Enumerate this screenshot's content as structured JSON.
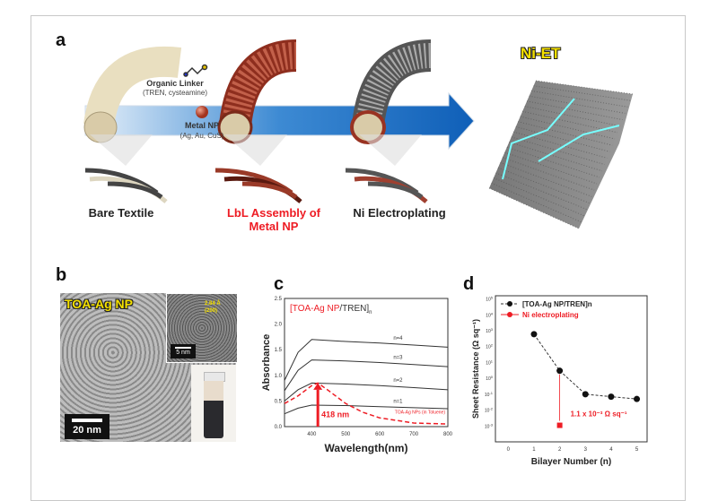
{
  "panel_a": {
    "label": "a",
    "linker_title": "Organic Linker",
    "linker_sub": "(TREN, cysteamine)",
    "np_title": "Metal NP",
    "np_sub": "(Ag, Au, CuS)",
    "step1": "Bare Textile",
    "step2_line1": "LbL Assembly of",
    "step2_line2": "Metal NP",
    "step3": "Ni Electroplating",
    "product": "Ni-ET"
  },
  "panel_b": {
    "label": "b",
    "title": "TOA-Ag NP",
    "lattice": "2.84 Å",
    "plane": "(200)",
    "inset_scale": "5 nm",
    "scale": "20 nm"
  },
  "chart_data": [
    {
      "panel": "c",
      "type": "line",
      "title": "[TOA-Ag NP/TREN]n",
      "title_parts": {
        "np": "[TOA-Ag NP",
        "rest": "/TREN]",
        "sub": "n"
      },
      "xlabel": "Wavelength(nm)",
      "ylabel": "Absorbance",
      "xlim": [
        320,
        800
      ],
      "ylim": [
        0,
        2.5
      ],
      "xticks": [
        400,
        500,
        600,
        700,
        800
      ],
      "yticks": [
        "0.0",
        "0.5",
        "1.0",
        "1.5",
        "2.0",
        "2.5"
      ],
      "series": [
        {
          "name": "n=4",
          "x": [
            320,
            360,
            400,
            500,
            600,
            700,
            800
          ],
          "y": [
            0.9,
            1.45,
            1.7,
            1.66,
            1.63,
            1.59,
            1.55
          ]
        },
        {
          "name": "n=3",
          "x": [
            320,
            360,
            400,
            500,
            600,
            700,
            800
          ],
          "y": [
            0.7,
            1.1,
            1.3,
            1.28,
            1.25,
            1.21,
            1.17
          ]
        },
        {
          "name": "n=2",
          "x": [
            320,
            360,
            400,
            500,
            600,
            700,
            800
          ],
          "y": [
            0.5,
            0.72,
            0.85,
            0.83,
            0.8,
            0.76,
            0.72
          ]
        },
        {
          "name": "n=1",
          "x": [
            320,
            360,
            400,
            500,
            600,
            700,
            800
          ],
          "y": [
            0.25,
            0.36,
            0.42,
            0.41,
            0.39,
            0.37,
            0.35
          ]
        },
        {
          "name": "TOA-Ag NPs (in Toluene)",
          "x": [
            320,
            360,
            400,
            418,
            450,
            500,
            550,
            600,
            700,
            800
          ],
          "y": [
            0.45,
            0.6,
            0.8,
            0.85,
            0.7,
            0.45,
            0.28,
            0.17,
            0.07,
            0.05
          ]
        }
      ],
      "annotation": "418 nm",
      "annotation_x": 418
    },
    {
      "panel": "d",
      "type": "scatter",
      "xlabel": "Bilayer Number (n)",
      "ylabel": "Sheet Resistance (Ω sq⁻¹)",
      "xlim": [
        -0.5,
        5.4
      ],
      "ylim_log10": [
        -4,
        5.2
      ],
      "xticks": [
        "0",
        "1",
        "2",
        "3",
        "4",
        "5"
      ],
      "yticks": [
        -3,
        -2,
        -1,
        0,
        1,
        2,
        3,
        4,
        5
      ],
      "series": [
        {
          "name": "[TOA-Ag NP/TREN]n",
          "x": [
            1,
            2,
            3,
            4,
            5
          ],
          "y": [
            600,
            3,
            0.1,
            0.07,
            0.05
          ],
          "color": "#111111"
        },
        {
          "name": "Ni electroplating",
          "x": [
            2
          ],
          "y": [
            0.0011
          ],
          "color": "#ee1c24"
        }
      ],
      "annotation": "1.1 x 10⁻³ Ω sq⁻¹"
    }
  ],
  "panel_c_label": "c",
  "panel_d_label": "d",
  "colors": {
    "accent_red": "#ee1c24",
    "arrow_blue": "#1668c0",
    "yellow": "#f4e000"
  }
}
